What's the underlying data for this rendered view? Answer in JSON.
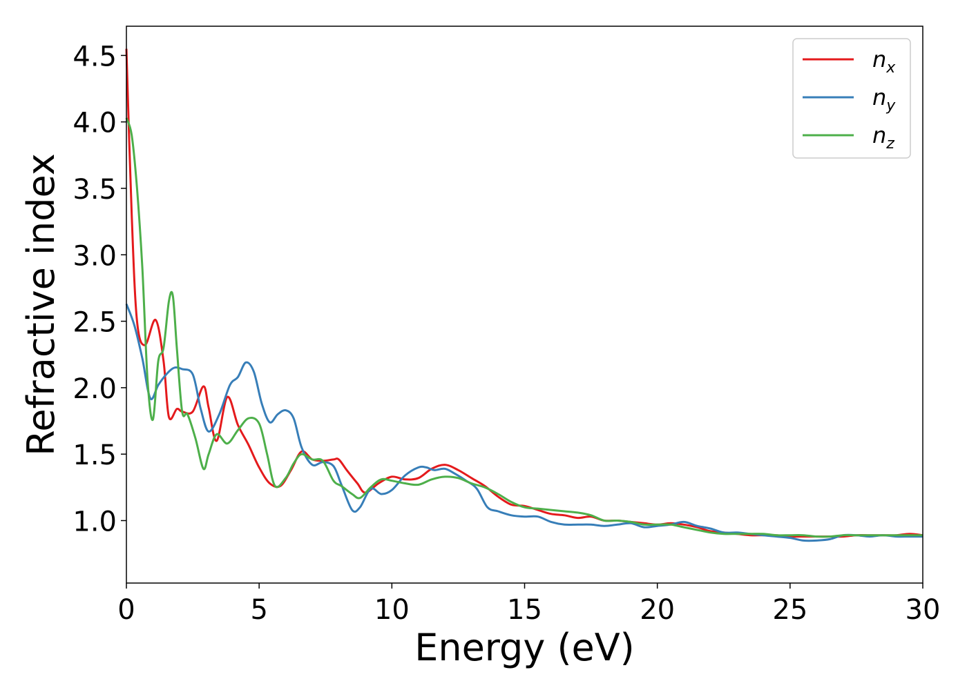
{
  "chart_data": {
    "type": "line",
    "title": "",
    "xlabel": "Energy (eV)",
    "ylabel": "Refractive index",
    "xlim": [
      0,
      30
    ],
    "ylim": [
      0.53,
      4.72
    ],
    "xticks": [
      0,
      5,
      10,
      15,
      20,
      25,
      30
    ],
    "xtick_labels": [
      "0",
      "5",
      "10",
      "15",
      "20",
      "25",
      "30"
    ],
    "yticks": [
      1.0,
      1.5,
      2.0,
      2.5,
      3.0,
      3.5,
      4.0,
      4.5
    ],
    "ytick_labels": [
      "1.0",
      "1.5",
      "2.0",
      "2.5",
      "3.0",
      "3.5",
      "4.0",
      "4.5"
    ],
    "grid": false,
    "legend_position": "top-right",
    "series": [
      {
        "name": "n",
        "subscript": "x",
        "color": "#e41a1c",
        "x": [
          0,
          0.2,
          0.4,
          0.7,
          1.1,
          1.4,
          1.6,
          1.9,
          2.1,
          2.5,
          2.9,
          3.1,
          3.4,
          3.8,
          4.2,
          4.6,
          5.0,
          5.4,
          5.8,
          6.2,
          6.6,
          7.0,
          7.4,
          7.8,
          8.0,
          8.3,
          8.7,
          9.0,
          9.5,
          10.0,
          10.5,
          11.0,
          11.5,
          12.0,
          12.5,
          13.0,
          13.5,
          14.0,
          14.5,
          15.0,
          15.5,
          16.0,
          16.5,
          17.0,
          17.5,
          18.0,
          18.5,
          19.0,
          19.5,
          20.0,
          20.5,
          21.0,
          21.5,
          22.0,
          22.5,
          23.0,
          23.5,
          24.0,
          24.5,
          25.0,
          25.5,
          26.0,
          26.5,
          27.0,
          27.5,
          28.0,
          28.5,
          29.0,
          29.5,
          30.0
        ],
        "y": [
          4.55,
          3.3,
          2.5,
          2.32,
          2.51,
          2.2,
          1.78,
          1.84,
          1.82,
          1.82,
          2.01,
          1.85,
          1.6,
          1.93,
          1.72,
          1.57,
          1.4,
          1.28,
          1.26,
          1.38,
          1.52,
          1.46,
          1.45,
          1.46,
          1.46,
          1.38,
          1.28,
          1.21,
          1.28,
          1.33,
          1.31,
          1.32,
          1.39,
          1.42,
          1.38,
          1.32,
          1.26,
          1.18,
          1.12,
          1.11,
          1.08,
          1.05,
          1.04,
          1.02,
          1.03,
          1.0,
          1.0,
          0.99,
          0.98,
          0.97,
          0.98,
          0.97,
          0.95,
          0.92,
          0.91,
          0.9,
          0.89,
          0.89,
          0.89,
          0.88,
          0.88,
          0.88,
          0.88,
          0.88,
          0.89,
          0.89,
          0.89,
          0.89,
          0.9,
          0.89
        ]
      },
      {
        "name": "n",
        "subscript": "y",
        "color": "#377eb8",
        "x": [
          0,
          0.3,
          0.6,
          0.9,
          1.2,
          1.5,
          1.8,
          2.1,
          2.5,
          2.8,
          3.1,
          3.5,
          3.9,
          4.2,
          4.5,
          4.8,
          5.1,
          5.4,
          5.7,
          6.0,
          6.3,
          6.6,
          7.0,
          7.4,
          7.8,
          8.1,
          8.5,
          8.8,
          9.2,
          9.6,
          10.0,
          10.5,
          11.0,
          11.3,
          11.6,
          12.0,
          12.4,
          12.8,
          13.2,
          13.6,
          14.0,
          14.5,
          15.0,
          15.5,
          16.0,
          16.5,
          17.0,
          17.5,
          18.0,
          18.5,
          19.0,
          19.5,
          20.0,
          20.5,
          21.0,
          21.5,
          22.0,
          22.5,
          23.0,
          23.5,
          24.0,
          24.5,
          25.0,
          25.5,
          26.0,
          26.5,
          27.0,
          27.5,
          28.0,
          28.5,
          29.0,
          29.5,
          30.0
        ],
        "y": [
          2.63,
          2.47,
          2.22,
          1.92,
          2.02,
          2.1,
          2.15,
          2.14,
          2.1,
          1.84,
          1.67,
          1.8,
          2.02,
          2.08,
          2.19,
          2.12,
          1.88,
          1.74,
          1.8,
          1.83,
          1.77,
          1.55,
          1.42,
          1.44,
          1.41,
          1.27,
          1.08,
          1.1,
          1.24,
          1.2,
          1.23,
          1.34,
          1.4,
          1.4,
          1.38,
          1.39,
          1.35,
          1.3,
          1.24,
          1.1,
          1.07,
          1.04,
          1.03,
          1.03,
          0.99,
          0.97,
          0.97,
          0.97,
          0.96,
          0.97,
          0.98,
          0.95,
          0.96,
          0.97,
          0.99,
          0.96,
          0.94,
          0.91,
          0.91,
          0.9,
          0.89,
          0.88,
          0.87,
          0.85,
          0.85,
          0.86,
          0.89,
          0.89,
          0.88,
          0.89,
          0.88,
          0.88,
          0.88
        ]
      },
      {
        "name": "n",
        "subscript": "z",
        "color": "#4daf4a",
        "x": [
          0,
          0.2,
          0.4,
          0.6,
          0.8,
          1.0,
          1.2,
          1.4,
          1.6,
          1.75,
          1.9,
          2.1,
          2.3,
          2.6,
          2.9,
          3.1,
          3.4,
          3.8,
          4.2,
          4.6,
          5.0,
          5.3,
          5.6,
          6.0,
          6.3,
          6.6,
          7.0,
          7.4,
          7.8,
          8.1,
          8.5,
          8.8,
          9.2,
          9.6,
          10.0,
          10.5,
          11.0,
          11.5,
          12.0,
          12.5,
          13.0,
          13.5,
          14.0,
          14.5,
          15.0,
          15.5,
          16.0,
          16.5,
          17.0,
          17.5,
          18.0,
          18.5,
          19.0,
          19.5,
          20.0,
          20.5,
          21.0,
          21.5,
          22.0,
          22.5,
          23.0,
          23.5,
          24.0,
          24.5,
          25.0,
          25.5,
          26.0,
          26.5,
          27.0,
          27.5,
          28.0,
          28.5,
          29.0,
          29.5,
          30.0
        ],
        "y": [
          4.03,
          3.9,
          3.5,
          2.9,
          2.05,
          1.76,
          2.2,
          2.3,
          2.65,
          2.69,
          2.3,
          1.82,
          1.8,
          1.62,
          1.39,
          1.5,
          1.65,
          1.58,
          1.68,
          1.77,
          1.73,
          1.5,
          1.26,
          1.32,
          1.43,
          1.5,
          1.46,
          1.45,
          1.3,
          1.26,
          1.2,
          1.17,
          1.25,
          1.31,
          1.3,
          1.28,
          1.27,
          1.31,
          1.33,
          1.32,
          1.28,
          1.25,
          1.2,
          1.14,
          1.1,
          1.09,
          1.08,
          1.07,
          1.06,
          1.04,
          1.0,
          1.0,
          0.99,
          0.97,
          0.97,
          0.97,
          0.95,
          0.93,
          0.91,
          0.9,
          0.9,
          0.9,
          0.9,
          0.89,
          0.89,
          0.89,
          0.88,
          0.88,
          0.89,
          0.89,
          0.89,
          0.89,
          0.89,
          0.89,
          0.89
        ]
      }
    ]
  }
}
